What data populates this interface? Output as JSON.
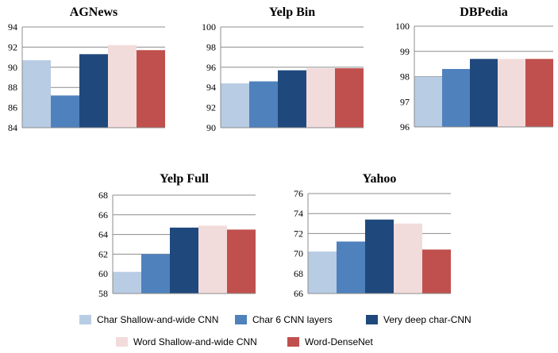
{
  "chart_data": [
    {
      "type": "bar",
      "title": "AGNews",
      "categories": [
        "Char Shallow-and-wide CNN",
        "Char 6 CNN layers",
        "Very deep char-CNN",
        "Word Shallow-and-wide CNN",
        "Word-DenseNet"
      ],
      "values": [
        90.7,
        87.2,
        91.3,
        92.2,
        91.7
      ],
      "ylim": [
        84,
        94
      ],
      "yticks": [
        "84",
        "86",
        "88",
        "90",
        "92",
        "94"
      ],
      "xlabel": "",
      "ylabel": "",
      "grid": true
    },
    {
      "type": "bar",
      "title": "Yelp Bin",
      "categories": [
        "Char Shallow-and-wide CNN",
        "Char 6 CNN layers",
        "Very deep char-CNN",
        "Word Shallow-and-wide CNN",
        "Word-DenseNet"
      ],
      "values": [
        94.4,
        94.6,
        95.7,
        95.9,
        95.9
      ],
      "ylim": [
        90,
        100
      ],
      "yticks": [
        "90",
        "92",
        "94",
        "96",
        "98",
        "100"
      ],
      "xlabel": "",
      "ylabel": "",
      "grid": true
    },
    {
      "type": "bar",
      "title": "DBPedia",
      "categories": [
        "Char Shallow-and-wide CNN",
        "Char 6 CNN layers",
        "Very deep char-CNN",
        "Word Shallow-and-wide CNN",
        "Word-DenseNet"
      ],
      "values": [
        98.0,
        98.3,
        98.7,
        98.7,
        98.7
      ],
      "ylim": [
        96,
        100
      ],
      "yticks": [
        "96",
        "97",
        "98",
        "99",
        "100"
      ],
      "xlabel": "",
      "ylabel": "",
      "grid": true
    },
    {
      "type": "bar",
      "title": "Yelp Full",
      "categories": [
        "Char Shallow-and-wide CNN",
        "Char 6 CNN layers",
        "Very deep char-CNN",
        "Word Shallow-and-wide CNN",
        "Word-DenseNet"
      ],
      "values": [
        60.2,
        62.0,
        64.7,
        64.9,
        64.5
      ],
      "ylim": [
        58,
        68
      ],
      "yticks": [
        "58",
        "60",
        "62",
        "64",
        "66",
        "68"
      ],
      "xlabel": "",
      "ylabel": "",
      "grid": true
    },
    {
      "type": "bar",
      "title": "Yahoo",
      "categories": [
        "Char Shallow-and-wide CNN",
        "Char 6 CNN layers",
        "Very deep char-CNN",
        "Word Shallow-and-wide CNN",
        "Word-DenseNet"
      ],
      "values": [
        70.2,
        71.2,
        73.4,
        73.0,
        70.4
      ],
      "ylim": [
        66,
        76
      ],
      "yticks": [
        "66",
        "68",
        "70",
        "72",
        "74",
        "76"
      ],
      "xlabel": "",
      "ylabel": "",
      "grid": true
    }
  ],
  "legend": {
    "placement": "bottom",
    "items": [
      {
        "label": "Char Shallow-and-wide CNN",
        "color": "#b8cce4"
      },
      {
        "label": "Char 6 CNN layers",
        "color": "#4f81bd"
      },
      {
        "label": "Very deep char-CNN",
        "color": "#1f497d"
      },
      {
        "label": "Word Shallow-and-wide CNN",
        "color": "#f2dcdb"
      },
      {
        "label": "Word-DenseNet",
        "color": "#c0504d"
      }
    ]
  }
}
